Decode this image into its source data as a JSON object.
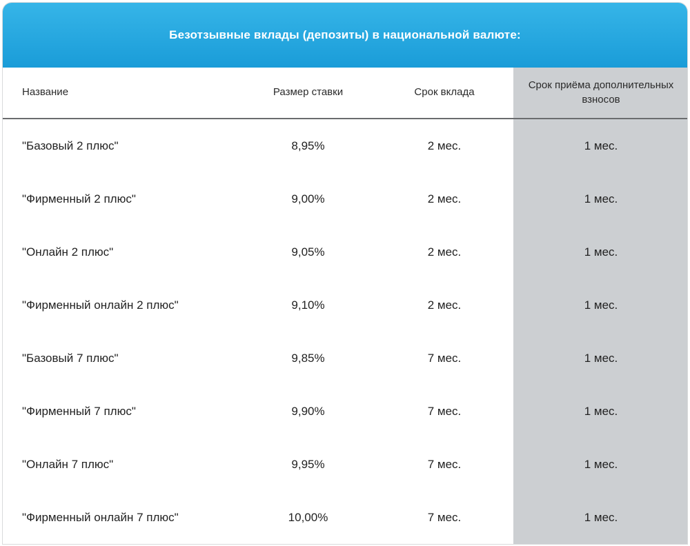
{
  "title": "Безотзывные вклады (депозиты) в национальной валюте:",
  "banner_gradient_top": "#36b5e8",
  "banner_gradient_bottom": "#1a9cd8",
  "shade_bg": "#cccfd2",
  "columns": [
    "Название",
    "Размер ставки",
    "Срок вклада",
    "Срок приёма дополнительных взносов"
  ],
  "rows": [
    {
      "name": "\"Базовый 2  плюс\"",
      "rate": "8,95%",
      "term": "2 мес.",
      "extra": "1 мес."
    },
    {
      "name": "\"Фирменный 2 плюс\"",
      "rate": "9,00%",
      "term": "2 мес.",
      "extra": "1 мес."
    },
    {
      "name": "\"Онлайн 2 плюс\"",
      "rate": "9,05%",
      "term": "2 мес.",
      "extra": "1 мес."
    },
    {
      "name": "\"Фирменный онлайн 2 плюс\"",
      "rate": "9,10%",
      "term": "2 мес.",
      "extra": "1 мес."
    },
    {
      "name": "\"Базовый 7 плюс\"",
      "rate": "9,85%",
      "term": "7 мес.",
      "extra": "1 мес."
    },
    {
      "name": "\"Фирменный 7 плюс\"",
      "rate": "9,90%",
      "term": "7 мес.",
      "extra": "1 мес."
    },
    {
      "name": "\"Онлайн 7 плюс\"",
      "rate": "9,95%",
      "term": "7 мес.",
      "extra": "1 мес."
    },
    {
      "name": "\"Фирменный онлайн 7 плюс\"",
      "rate": "10,00%",
      "term": "7 мес.",
      "extra": "1 мес."
    }
  ]
}
